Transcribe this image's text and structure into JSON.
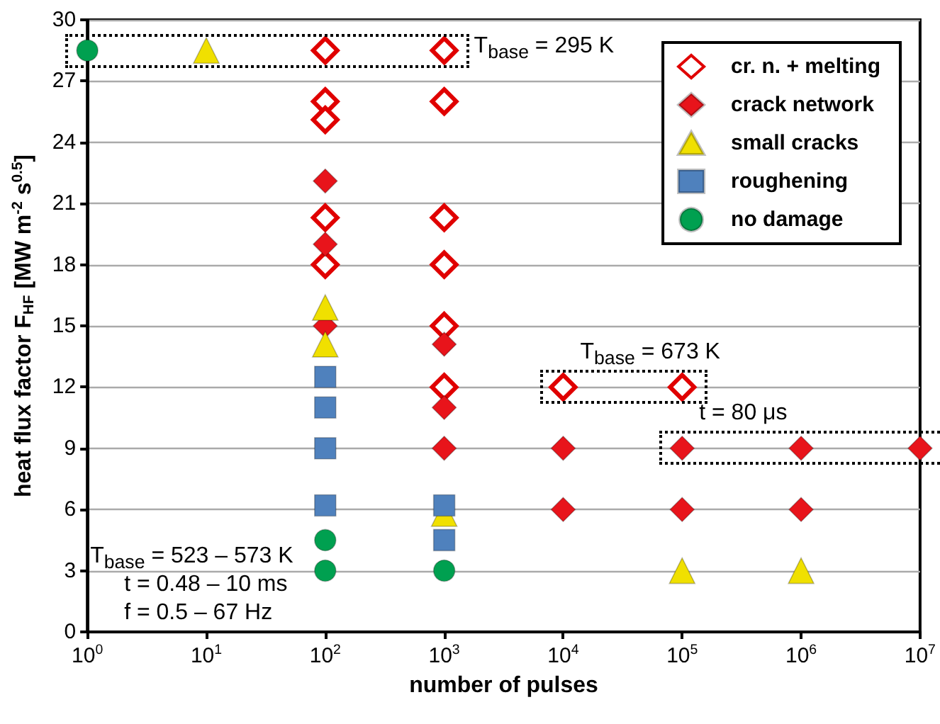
{
  "chart_data": {
    "type": "scatter",
    "xlabel": "number of pulses",
    "ylabel": "heat flux factor F$_{HF}$ [MW m$^{-2}$ s$^{0.5}$]",
    "log": "x",
    "xlim": [
      1,
      10000000
    ],
    "xticks": [
      {
        "value": 1,
        "label": "10$^{0}$"
      },
      {
        "value": 10,
        "label": "10$^{1}$"
      },
      {
        "value": 100,
        "label": "10$^{2}$"
      },
      {
        "value": 1000,
        "label": "10$^{3}$"
      },
      {
        "value": 10000,
        "label": "10$^{4}$"
      },
      {
        "value": 100000,
        "label": "10$^{5}$"
      },
      {
        "value": 1000000,
        "label": "10$^{6}$"
      },
      {
        "value": 10000000,
        "label": "10$^{7}$"
      }
    ],
    "ylim": [
      0,
      30
    ],
    "yticks": [
      0,
      3,
      6,
      9,
      12,
      15,
      18,
      21,
      24,
      27,
      30
    ],
    "grid": "y",
    "legend": "top right",
    "series": [
      {
        "name": "cr. n. + melting",
        "color": "#e00000",
        "marker": "diamond-open",
        "x": [
          100,
          100,
          100,
          100,
          100,
          1000,
          1000,
          1000,
          1000,
          1000,
          1000,
          10000,
          100000
        ],
        "values": [
          28.5,
          26,
          25.1,
          20.3,
          18,
          28.5,
          26,
          20.3,
          18,
          15,
          12,
          12,
          12
        ]
      },
      {
        "name": "crack network",
        "color": "#e8141b",
        "marker": "diamond",
        "x": [
          100,
          100,
          100,
          1000,
          1000,
          1000,
          10000,
          10000,
          100000,
          100000,
          1000000,
          1000000,
          10000000
        ],
        "values": [
          22.1,
          19,
          15,
          14.1,
          11,
          9,
          9,
          6,
          9,
          6,
          9,
          6,
          9
        ]
      },
      {
        "name": "small cracks",
        "color": "#f0e000",
        "marker": "triangle",
        "x": [
          10,
          100,
          100,
          1000,
          100000,
          1000000
        ],
        "values": [
          28.5,
          15.9,
          14.1,
          5.8,
          3,
          3
        ]
      },
      {
        "name": "roughening",
        "color": "#4f81bd",
        "marker": "square",
        "x": [
          100,
          100,
          100,
          100,
          1000,
          1000
        ],
        "values": [
          12.5,
          11,
          9,
          6.2,
          6.2,
          4.5
        ]
      },
      {
        "name": "no damage",
        "color": "#00a050",
        "marker": "circle",
        "x": [
          1,
          100,
          100,
          1000
        ],
        "values": [
          28.5,
          4.5,
          3,
          3
        ]
      }
    ],
    "annotations": [
      {
        "text": "T$_{base}$ = 295 K",
        "x": 1000,
        "y": 28.5
      },
      {
        "text": "T$_{base}$ = 673 K",
        "x": 10000,
        "y": 12
      },
      {
        "text": "t = 80 μs",
        "x": 100000,
        "y": 9
      },
      "T$_{base}$ = 523 – 573 K",
      "t = 0.48 – 10 ms",
      "f = 0.5 – 67  Hz"
    ]
  }
}
